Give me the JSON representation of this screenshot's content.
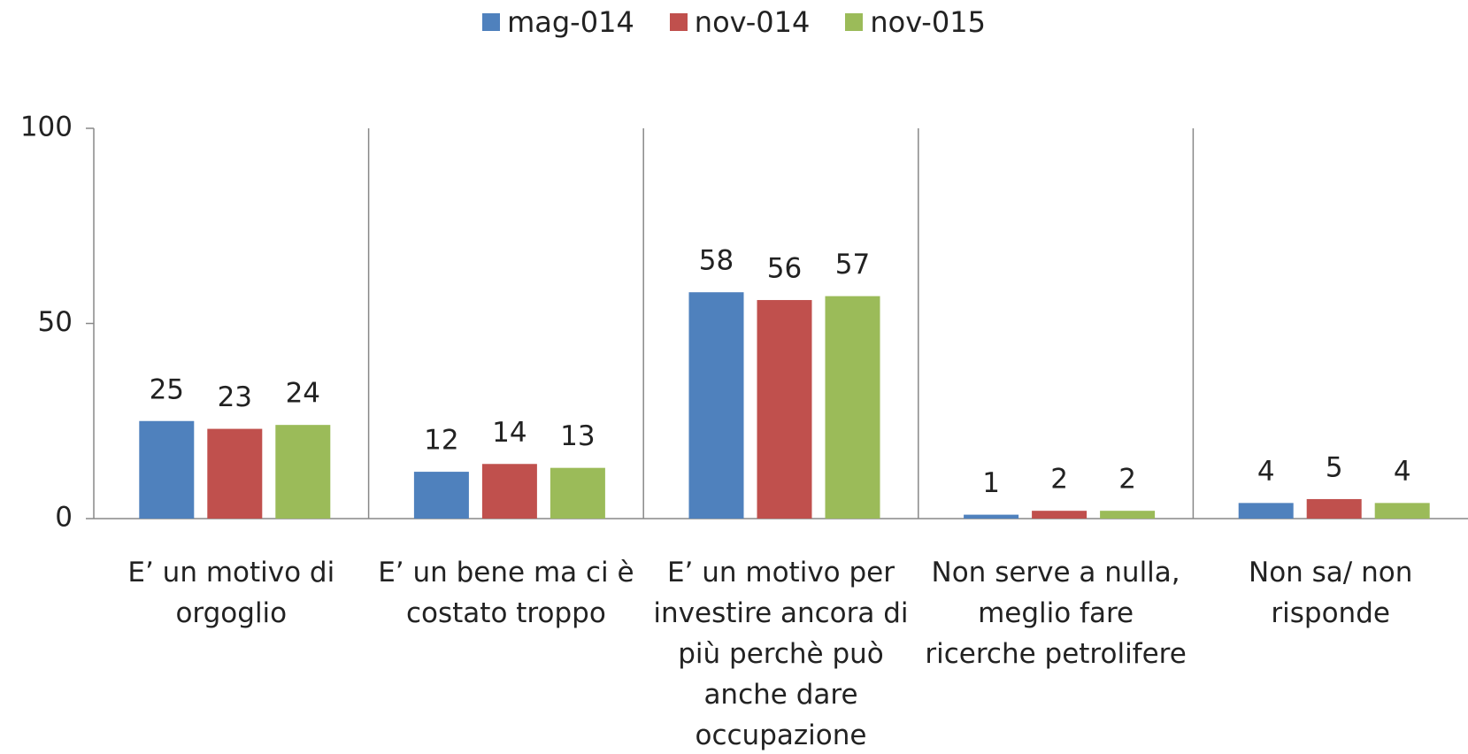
{
  "chart_data": {
    "type": "bar",
    "categories": [
      "E’ un motivo di orgoglio",
      "E’ un bene ma ci è costato troppo",
      "E’ un motivo per investire ancora di più perchè può anche dare occupazione",
      "Non serve a nulla, meglio fare ricerche petrolifere",
      "Non sa/ non risponde"
    ],
    "series": [
      {
        "name": "mag-014",
        "color": "#4f81bd",
        "values": [
          25,
          12,
          58,
          1,
          4
        ]
      },
      {
        "name": "nov-014",
        "color": "#c0504d",
        "values": [
          23,
          14,
          56,
          2,
          5
        ]
      },
      {
        "name": "nov-015",
        "color": "#9bbb59",
        "values": [
          24,
          13,
          57,
          2,
          4
        ]
      }
    ],
    "ylim": [
      0,
      100
    ],
    "yticks": [
      0,
      50,
      100
    ],
    "grid": false,
    "legend": "top"
  }
}
